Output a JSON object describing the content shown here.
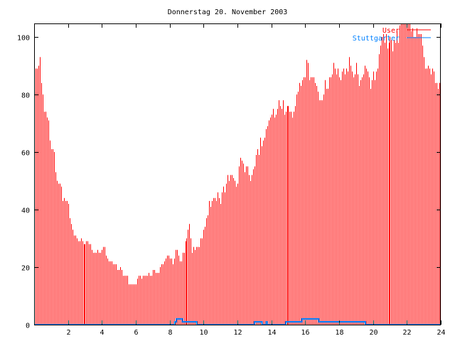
{
  "chart_data": {
    "type": "bar",
    "style": "impulses",
    "title": "Donnerstag 20. November 2003",
    "xlabel": "",
    "ylabel": "",
    "xlim": [
      0,
      24
    ],
    "ylim": [
      0,
      105
    ],
    "x_ticks": [
      2,
      4,
      6,
      8,
      10,
      12,
      14,
      16,
      18,
      20,
      22,
      24
    ],
    "y_ticks": [
      0,
      20,
      40,
      60,
      80,
      100
    ],
    "grid": false,
    "legend_position": "top-right",
    "x_step_hours": 0.0833333,
    "series": [
      {
        "name": "User",
        "color": "#ff0000",
        "values": [
          89,
          89,
          89,
          90,
          93,
          84,
          80,
          74,
          74,
          72,
          71,
          64,
          61,
          61,
          60,
          53,
          50,
          49,
          49,
          48,
          43,
          44,
          43,
          43,
          42,
          37,
          35,
          33,
          31,
          31,
          30,
          29,
          29,
          30,
          29,
          28,
          28,
          29,
          29,
          28,
          28,
          26,
          25,
          25,
          25,
          26,
          25,
          25,
          26,
          27,
          27,
          24,
          23,
          22,
          22,
          22,
          21,
          21,
          21,
          19,
          19,
          20,
          19,
          17,
          17,
          17,
          17,
          14,
          14,
          14,
          14,
          14,
          14,
          16,
          17,
          17,
          16,
          17,
          17,
          17,
          17,
          18,
          17,
          17,
          19,
          19,
          18,
          18,
          18,
          20,
          21,
          21,
          22,
          23,
          24,
          24,
          23,
          23,
          21,
          23,
          26,
          26,
          24,
          22,
          22,
          25,
          25,
          29,
          30,
          33,
          35,
          30,
          25,
          27,
          26,
          27,
          27,
          27,
          30,
          30,
          33,
          34,
          37,
          38,
          43,
          41,
          43,
          44,
          44,
          43,
          46,
          44,
          42,
          46,
          48,
          46,
          49,
          52,
          50,
          52,
          52,
          51,
          50,
          48,
          49,
          55,
          58,
          57,
          56,
          53,
          55,
          55,
          52,
          50,
          52,
          54,
          55,
          59,
          61,
          59,
          65,
          62,
          64,
          65,
          68,
          69,
          71,
          72,
          73,
          75,
          72,
          73,
          75,
          78,
          76,
          75,
          78,
          73,
          74,
          76,
          76,
          74,
          74,
          72,
          74,
          76,
          80,
          81,
          84,
          83,
          85,
          86,
          86,
          92,
          91,
          85,
          86,
          86,
          86,
          84,
          83,
          81,
          78,
          78,
          78,
          80,
          85,
          82,
          82,
          86,
          86,
          87,
          91,
          89,
          87,
          89,
          86,
          85,
          88,
          89,
          87,
          89,
          88,
          93,
          90,
          88,
          86,
          87,
          91,
          87,
          83,
          85,
          86,
          87,
          90,
          89,
          88,
          86,
          82,
          85,
          88,
          85,
          88,
          89,
          94,
          97,
          100,
          101,
          98,
          101,
          96,
          98,
          100,
          99,
          95,
          99,
          98,
          102,
          98,
          104,
          108,
          110,
          107,
          109,
          108,
          106,
          107,
          102,
          103,
          100,
          100,
          103,
          101,
          101,
          101,
          97,
          93,
          89,
          89,
          90,
          89,
          87,
          89,
          88,
          84,
          84,
          82,
          84
        ]
      },
      {
        "name": "Stuttgarter",
        "color": "#0080ff",
        "steps": [
          [
            0,
            0
          ],
          [
            8.3,
            1
          ],
          [
            8.4,
            2
          ],
          [
            8.75,
            1
          ],
          [
            9.6,
            0
          ],
          [
            13.0,
            1
          ],
          [
            13.45,
            0
          ],
          [
            13.7,
            1
          ],
          [
            13.75,
            0
          ],
          [
            14.85,
            1
          ],
          [
            15.8,
            2
          ],
          [
            16.8,
            1
          ],
          [
            19.55,
            0
          ],
          [
            24,
            0
          ]
        ]
      }
    ]
  }
}
